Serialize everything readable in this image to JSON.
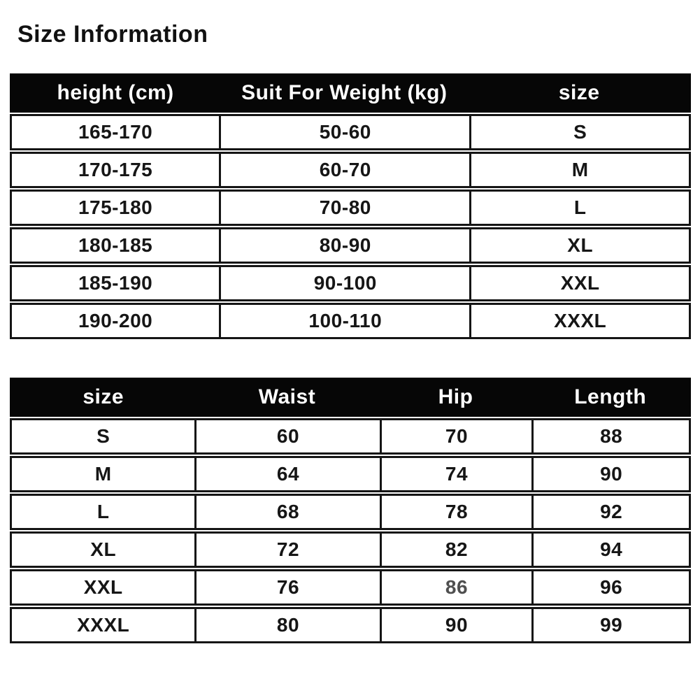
{
  "page": {
    "title": "Size Information"
  },
  "colors": {
    "header_bg": "#060606",
    "header_text": "#ffffff",
    "body_text": "#161616",
    "border": "#151515",
    "muted_cell_text": "#4f4f4f",
    "background": "#ffffff"
  },
  "tables": [
    {
      "name": "height-weight-size-table",
      "headers": [
        "height (cm)",
        "Suit For Weight (kg)",
        "size"
      ],
      "rows": [
        [
          "165-170",
          "50-60",
          "S"
        ],
        [
          "170-175",
          "60-70",
          "M"
        ],
        [
          "175-180",
          "70-80",
          "L"
        ],
        [
          "180-185",
          "80-90",
          "XL"
        ],
        [
          "185-190",
          "90-100",
          "XXL"
        ],
        [
          "190-200",
          "100-110",
          "XXXL"
        ]
      ]
    },
    {
      "name": "measurements-table",
      "headers": [
        "size",
        "Waist",
        "Hip",
        "Length"
      ],
      "rows": [
        [
          "S",
          "60",
          "70",
          "88"
        ],
        [
          "M",
          "64",
          "74",
          "90"
        ],
        [
          "L",
          "68",
          "78",
          "92"
        ],
        [
          "XL",
          "72",
          "82",
          "94"
        ],
        [
          "XXL",
          "76",
          "86",
          "96"
        ],
        [
          "XXXL",
          "80",
          "90",
          "99"
        ]
      ]
    }
  ],
  "muted_cells": [
    {
      "table": 1,
      "row": 4,
      "col": 2
    }
  ]
}
